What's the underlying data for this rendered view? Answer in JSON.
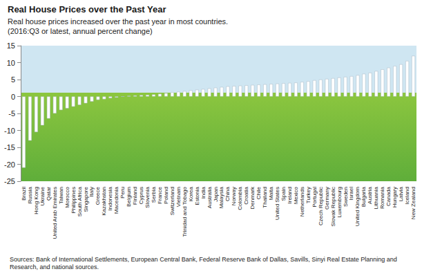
{
  "chart_data": {
    "type": "bar",
    "title": "Real House Prices over the Past Year",
    "subtitle": [
      "Real house prices increased over the past year in most countries.",
      "(2016:Q3 or latest, annual percent change)"
    ],
    "note": "Sources: Bank of International Settlements, European Central Bank, Federal Reserve Bank of Dallas, Savills, Sinyi Real Estate Planning and Research, and national sources.",
    "categories": [
      "Brazil",
      "Russia",
      "Hong Kong",
      "Ukraine",
      "Qatar",
      "United Arab Emirates",
      "Taiwan",
      "Morocco",
      "Philippines",
      "South Africa",
      "Singapore",
      "Italy",
      "Greece",
      "Kazakhstan",
      "Indonesia",
      "Macedonia",
      "Peru",
      "Belgium",
      "Finland",
      "Cyprus",
      "Slovenia",
      "Serbia",
      "France",
      "Poland",
      "Switzerland",
      "Vietnam",
      "Trinidad and Tobago",
      "Korea",
      "Estonia",
      "India",
      "Australia",
      "Japan",
      "Malaysia",
      "China",
      "Norway",
      "Colombia",
      "Croatia",
      "Denmark",
      "Chile",
      "Thailand",
      "Malta",
      "United States",
      "Spain",
      "Ireland",
      "Mexico",
      "Netherlands",
      "Turkey",
      "Portugal",
      "Czech Republic",
      "Germany",
      "Slovak Republic",
      "Luxembourg",
      "Sweden",
      "Israel",
      "United Kingdom",
      "Bulgaria",
      "Austria",
      "Lithuania",
      "Romania",
      "Canada",
      "Hungary",
      "Latvia",
      "Iceland",
      "New Zealand"
    ],
    "values": [
      -21,
      -13,
      -10.5,
      -8.5,
      -6.5,
      -5,
      -4,
      -3.5,
      -3,
      -2.5,
      -2,
      -1.5,
      -1,
      -0.8,
      -0.5,
      -0.3,
      0,
      0.2,
      0.3,
      0.4,
      0.5,
      0.6,
      0.8,
      1,
      1.2,
      1.4,
      1.6,
      1.8,
      2,
      2.2,
      2.4,
      2.6,
      2.8,
      3,
      3.1,
      3.2,
      3.3,
      3.4,
      3.5,
      3.6,
      3.7,
      3.8,
      3.9,
      4,
      4.1,
      4.3,
      4.5,
      4.8,
      5,
      5.2,
      5.4,
      5.6,
      5.8,
      6,
      6.3,
      6.7,
      7,
      7.5,
      8,
      8.5,
      9,
      9.5,
      10.5,
      12
    ],
    "color": "#ffffff",
    "ylim": [
      -25,
      15
    ],
    "yticks": [
      -25,
      -20,
      -15,
      -10,
      -5,
      0,
      5,
      10,
      15
    ],
    "grid": false
  }
}
